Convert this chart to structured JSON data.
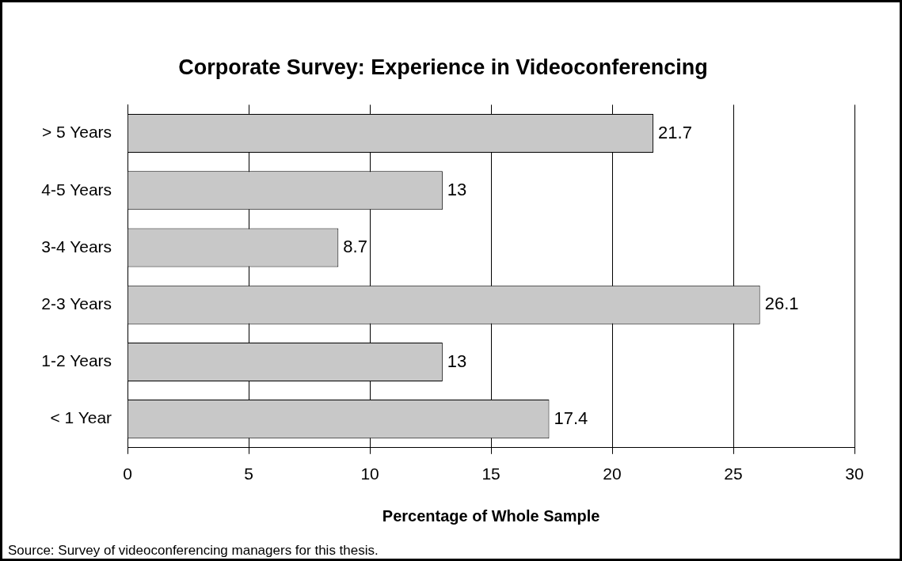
{
  "chart_data": {
    "type": "bar",
    "orientation": "horizontal",
    "title": "Corporate Survey: Experience in Videoconferencing",
    "xlabel": "Percentage of Whole Sample",
    "categories": [
      "> 5 Years",
      "4-5 Years",
      "3-4 Years",
      "2-3 Years",
      "1-2 Years",
      "< 1 Year"
    ],
    "values": [
      21.7,
      13,
      8.7,
      26.1,
      13,
      17.4
    ],
    "color": "#c8c8c8",
    "xlim": [
      0,
      30
    ],
    "xticks": [
      0,
      5,
      10,
      15,
      20,
      25,
      30
    ],
    "grid": "x",
    "data_labels": true,
    "legend": false,
    "annotations": [
      "Source: Survey of videoconferencing managers for this thesis."
    ]
  }
}
